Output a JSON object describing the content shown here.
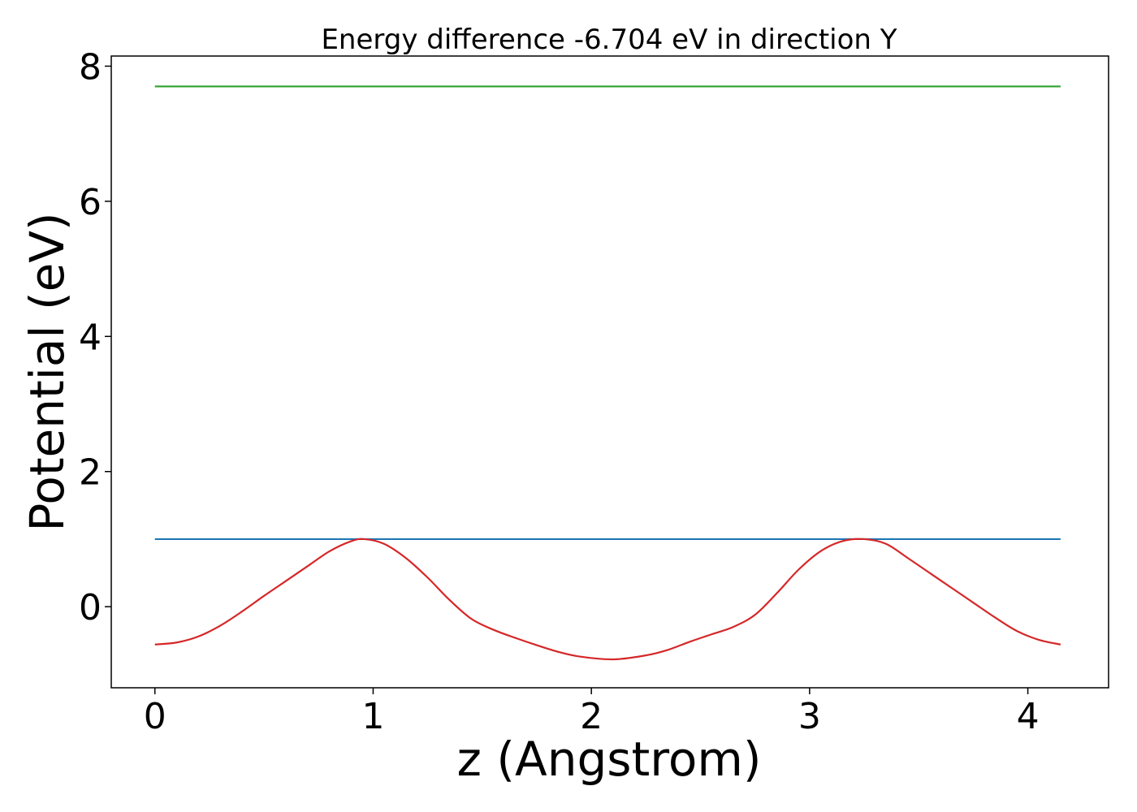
{
  "chart_data": {
    "type": "line",
    "title": "Energy difference -6.704 eV in direction Y",
    "xlabel": "z (Angstrom)",
    "ylabel": "Potential (eV)",
    "xlim": [
      -0.2,
      4.37
    ],
    "ylim": [
      -1.2,
      8.15
    ],
    "xticks": [
      0,
      1,
      2,
      3,
      4
    ],
    "yticks": [
      0,
      2,
      4,
      6,
      8
    ],
    "grid": false,
    "legend": "none",
    "series": [
      {
        "color": "#2ca02c",
        "x": [
          0,
          4.15
        ],
        "y": [
          7.7,
          7.7
        ]
      },
      {
        "color": "#1f77b4",
        "x": [
          0,
          4.15
        ],
        "y": [
          1.0,
          1.0
        ]
      },
      {
        "color": "#d62728",
        "x": [
          0,
          0.1,
          0.2,
          0.3,
          0.4,
          0.5,
          0.6,
          0.7,
          0.8,
          0.9,
          0.96,
          1.05,
          1.15,
          1.25,
          1.35,
          1.45,
          1.55,
          1.65,
          1.75,
          1.85,
          1.95,
          2.1,
          2.25,
          2.35,
          2.45,
          2.55,
          2.65,
          2.75,
          2.85,
          2.95,
          3.05,
          3.15,
          3.25,
          3.35,
          3.45,
          3.55,
          3.65,
          3.75,
          3.85,
          3.95,
          4.05,
          4.15
        ],
        "y": [
          -0.56,
          -0.53,
          -0.44,
          -0.28,
          -0.07,
          0.16,
          0.38,
          0.6,
          0.82,
          0.97,
          1.0,
          0.93,
          0.72,
          0.43,
          0.1,
          -0.18,
          -0.34,
          -0.46,
          -0.57,
          -0.67,
          -0.74,
          -0.78,
          -0.72,
          -0.64,
          -0.52,
          -0.41,
          -0.3,
          -0.12,
          0.2,
          0.55,
          0.82,
          0.97,
          1.0,
          0.93,
          0.72,
          0.5,
          0.28,
          0.06,
          -0.16,
          -0.36,
          -0.49,
          -0.56
        ]
      }
    ]
  }
}
